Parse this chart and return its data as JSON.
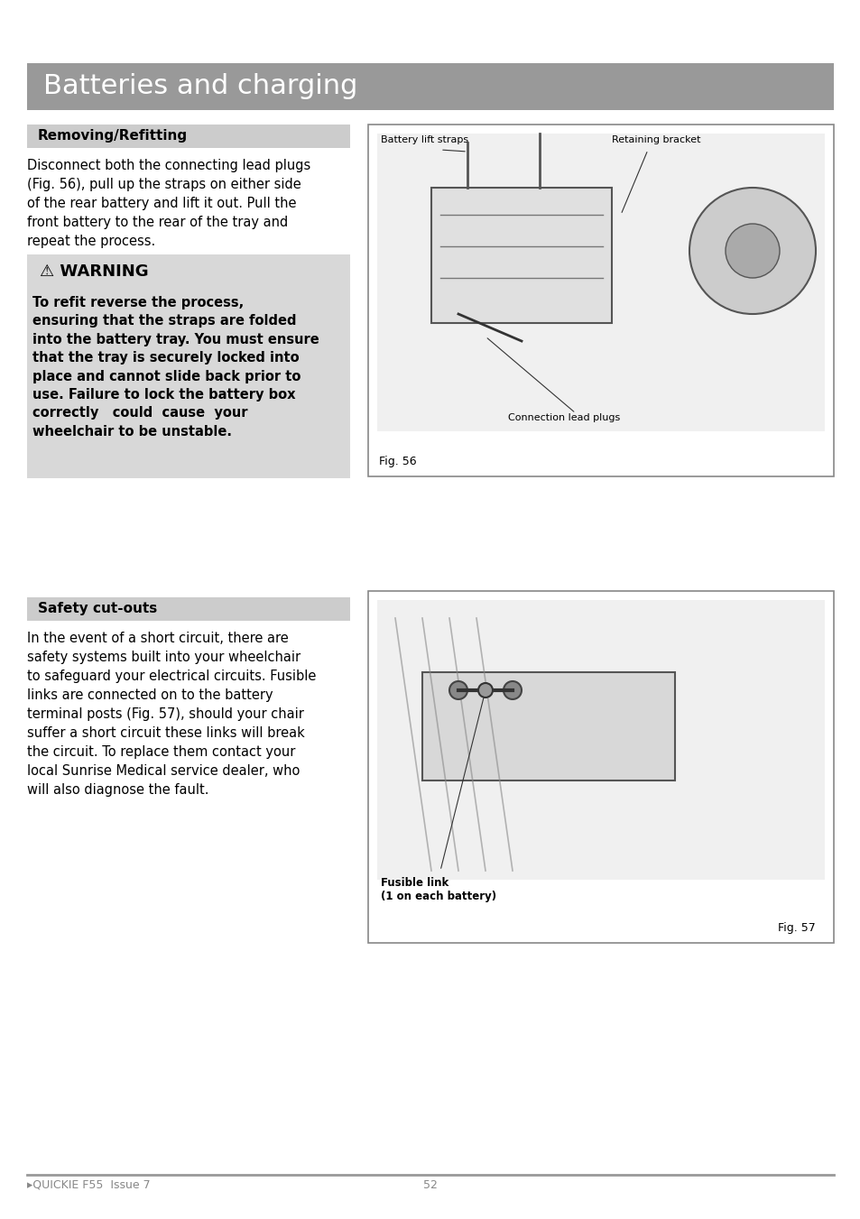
{
  "page_bg": "#ffffff",
  "header_bg": "#999999",
  "header_text": "Batteries and charging",
  "header_text_color": "#ffffff",
  "header_fontsize": 22,
  "section1_header_bg": "#cccccc",
  "section1_header_text": "Removing/Refitting",
  "section1_header_fontsize": 11,
  "section1_body": "Disconnect both the connecting lead plugs\n(Fig. 56), pull up the straps on either side\nof the rear battery and lift it out. Pull the\nfront battery to the rear of the tray and\nrepeat the process.",
  "section1_body_fontsize": 10.5,
  "warning_bg": "#d8d8d8",
  "warning_title": "⚠ WARNING",
  "warning_title_fontsize": 13,
  "warning_body": "To refit reverse the process,\nensuring that the straps are folded\ninto the battery tray. You must ensure\nthat the tray is securely locked into\nplace and cannot slide back prior to\nuse. Failure to lock the battery box\ncorrectly   could  cause  your\nwheelchair to be unstable.",
  "warning_body_fontsize": 10.5,
  "section2_header_bg": "#cccccc",
  "section2_header_text": "Safety cut-outs",
  "section2_header_fontsize": 11,
  "section2_body": "In the event of a short circuit, there are\nsafety systems built into your wheelchair\nto safeguard your electrical circuits. Fusible\nlinks are connected on to the battery\nterminal posts (Fig. 57), should your chair\nsuffer a short circuit these links will break\nthe circuit. To replace them contact your\nlocal Sunrise Medical service dealer, who\nwill also diagnose the fault.",
  "section2_body_fontsize": 10.5,
  "fig56_box_color": "#888888",
  "fig56_label": "Fig. 56",
  "fig56_annotations": [
    "Battery lift straps",
    "Retaining bracket",
    "Connection lead plugs"
  ],
  "fig57_box_color": "#888888",
  "fig57_label": "Fig. 57",
  "fig57_annotations": [
    "Fusible link\n(1 on each battery)"
  ],
  "footer_text_left": "▸QUICKIE F55  Issue 7",
  "footer_text_center": "52",
  "footer_line_color": "#999999",
  "footer_fontsize": 9
}
